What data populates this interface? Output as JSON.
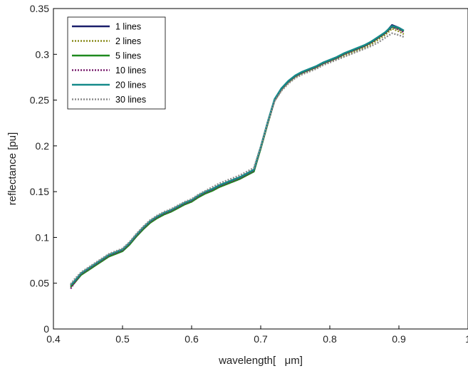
{
  "chart_data": {
    "type": "line",
    "xlabel": "wavelength[   μm]",
    "ylabel": "reflectance [pu]",
    "xlim": [
      0.4,
      1.0
    ],
    "ylim": [
      0,
      0.35
    ],
    "xticks": [
      "0.4",
      "0.5",
      "0.6",
      "0.7",
      "0.8",
      "0.9",
      "1"
    ],
    "yticks": [
      "0",
      "0.05",
      "0.1",
      "0.15",
      "0.2",
      "0.25",
      "0.3",
      "0.35"
    ],
    "grid": false,
    "legend_position": "top-left",
    "x": [
      0.425,
      0.43,
      0.44,
      0.45,
      0.46,
      0.47,
      0.48,
      0.49,
      0.5,
      0.51,
      0.52,
      0.53,
      0.54,
      0.55,
      0.56,
      0.57,
      0.58,
      0.59,
      0.6,
      0.61,
      0.62,
      0.63,
      0.64,
      0.65,
      0.66,
      0.67,
      0.68,
      0.69,
      0.7,
      0.71,
      0.72,
      0.73,
      0.74,
      0.75,
      0.76,
      0.77,
      0.78,
      0.79,
      0.8,
      0.81,
      0.82,
      0.83,
      0.84,
      0.85,
      0.86,
      0.87,
      0.88,
      0.89,
      0.9,
      0.907
    ],
    "series": [
      {
        "name": "1 lines",
        "color": "#1a1f6b",
        "dash": "solid",
        "values": [
          0.046,
          0.05,
          0.06,
          0.065,
          0.07,
          0.075,
          0.08,
          0.083,
          0.086,
          0.093,
          0.102,
          0.11,
          0.117,
          0.122,
          0.126,
          0.129,
          0.133,
          0.137,
          0.14,
          0.145,
          0.149,
          0.152,
          0.156,
          0.159,
          0.161,
          0.164,
          0.168,
          0.172,
          0.198,
          0.225,
          0.25,
          0.262,
          0.27,
          0.276,
          0.28,
          0.283,
          0.286,
          0.29,
          0.293,
          0.296,
          0.3,
          0.303,
          0.306,
          0.309,
          0.313,
          0.318,
          0.323,
          0.332,
          0.329,
          0.326
        ]
      },
      {
        "name": "2 lines",
        "color": "#8a8c1c",
        "dash": "dotted",
        "values": [
          0.047,
          0.051,
          0.06,
          0.065,
          0.07,
          0.074,
          0.079,
          0.083,
          0.086,
          0.093,
          0.101,
          0.109,
          0.116,
          0.121,
          0.125,
          0.128,
          0.132,
          0.136,
          0.139,
          0.144,
          0.148,
          0.151,
          0.155,
          0.158,
          0.161,
          0.164,
          0.168,
          0.173,
          0.198,
          0.224,
          0.249,
          0.261,
          0.269,
          0.275,
          0.279,
          0.282,
          0.285,
          0.289,
          0.292,
          0.295,
          0.298,
          0.301,
          0.304,
          0.307,
          0.311,
          0.316,
          0.321,
          0.328,
          0.325,
          0.322
        ]
      },
      {
        "name": "5 lines",
        "color": "#1f8a1f",
        "dash": "solid",
        "values": [
          0.046,
          0.05,
          0.059,
          0.064,
          0.069,
          0.074,
          0.079,
          0.082,
          0.085,
          0.092,
          0.101,
          0.109,
          0.116,
          0.121,
          0.125,
          0.128,
          0.132,
          0.136,
          0.139,
          0.144,
          0.148,
          0.151,
          0.155,
          0.158,
          0.161,
          0.164,
          0.168,
          0.172,
          0.197,
          0.224,
          0.25,
          0.262,
          0.27,
          0.276,
          0.28,
          0.283,
          0.286,
          0.29,
          0.293,
          0.296,
          0.3,
          0.303,
          0.306,
          0.309,
          0.313,
          0.318,
          0.323,
          0.33,
          0.328,
          0.325
        ]
      },
      {
        "name": "10 lines",
        "color": "#7a1f6e",
        "dash": "dotted",
        "values": [
          0.044,
          0.05,
          0.06,
          0.065,
          0.07,
          0.075,
          0.08,
          0.083,
          0.086,
          0.093,
          0.102,
          0.11,
          0.117,
          0.122,
          0.126,
          0.129,
          0.133,
          0.137,
          0.14,
          0.145,
          0.149,
          0.152,
          0.156,
          0.159,
          0.162,
          0.165,
          0.169,
          0.173,
          0.198,
          0.225,
          0.25,
          0.262,
          0.27,
          0.276,
          0.28,
          0.283,
          0.286,
          0.29,
          0.293,
          0.296,
          0.3,
          0.303,
          0.306,
          0.309,
          0.313,
          0.318,
          0.323,
          0.33,
          0.327,
          0.324
        ]
      },
      {
        "name": "20 lines",
        "color": "#158a8a",
        "dash": "solid",
        "values": [
          0.048,
          0.052,
          0.061,
          0.066,
          0.071,
          0.076,
          0.081,
          0.084,
          0.087,
          0.094,
          0.103,
          0.111,
          0.118,
          0.123,
          0.127,
          0.13,
          0.134,
          0.138,
          0.141,
          0.146,
          0.15,
          0.153,
          0.157,
          0.16,
          0.163,
          0.166,
          0.17,
          0.174,
          0.199,
          0.226,
          0.251,
          0.263,
          0.271,
          0.277,
          0.281,
          0.284,
          0.287,
          0.291,
          0.294,
          0.297,
          0.301,
          0.304,
          0.307,
          0.31,
          0.314,
          0.319,
          0.324,
          0.331,
          0.329,
          0.326
        ]
      },
      {
        "name": "30 lines",
        "color": "#8a8a8a",
        "dash": "dotted",
        "values": [
          0.049,
          0.054,
          0.062,
          0.067,
          0.072,
          0.077,
          0.082,
          0.085,
          0.088,
          0.095,
          0.104,
          0.112,
          0.119,
          0.124,
          0.128,
          0.131,
          0.135,
          0.139,
          0.142,
          0.147,
          0.151,
          0.155,
          0.159,
          0.162,
          0.165,
          0.168,
          0.172,
          0.176,
          0.199,
          0.225,
          0.249,
          0.26,
          0.268,
          0.274,
          0.278,
          0.281,
          0.284,
          0.288,
          0.291,
          0.294,
          0.297,
          0.3,
          0.303,
          0.306,
          0.309,
          0.313,
          0.318,
          0.323,
          0.321,
          0.319
        ]
      }
    ]
  }
}
